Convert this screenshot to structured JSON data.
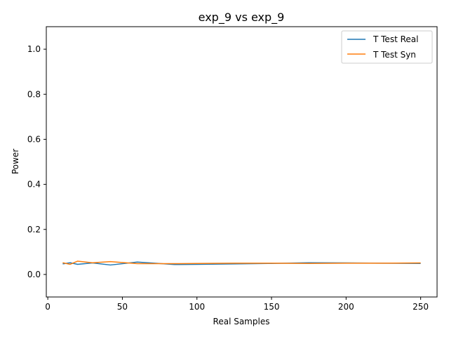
{
  "chart_data": {
    "type": "line",
    "title": "exp_9 vs exp_9",
    "xlabel": "Real Samples",
    "ylabel": "Power",
    "xlim": [
      -1,
      261
    ],
    "ylim": [
      -0.1,
      1.1
    ],
    "xticks": [
      0,
      50,
      100,
      150,
      200,
      250
    ],
    "yticks": [
      0.0,
      0.2,
      0.4,
      0.6,
      0.8,
      1.0
    ],
    "xtick_labels": [
      "0",
      "50",
      "100",
      "150",
      "200",
      "250"
    ],
    "ytick_labels": [
      "0.0",
      "0.2",
      "0.4",
      "0.6",
      "0.8",
      "1.0"
    ],
    "grid": false,
    "legend_position": "top-right",
    "series": [
      {
        "name": "T Test Real",
        "color": "#1f77b4",
        "x": [
          10,
          15,
          20,
          30,
          42,
          60,
          85,
          100,
          125,
          150,
          175,
          200,
          225,
          250
        ],
        "y": [
          0.047,
          0.052,
          0.045,
          0.051,
          0.042,
          0.055,
          0.044,
          0.045,
          0.047,
          0.049,
          0.052,
          0.051,
          0.05,
          0.049
        ]
      },
      {
        "name": "T Test Syn",
        "color": "#ff7f0e",
        "x": [
          10,
          15,
          20,
          30,
          42,
          60,
          85,
          100,
          125,
          150,
          175,
          200,
          225,
          250
        ],
        "y": [
          0.052,
          0.045,
          0.059,
          0.052,
          0.057,
          0.048,
          0.048,
          0.049,
          0.05,
          0.05,
          0.049,
          0.05,
          0.05,
          0.051
        ]
      }
    ]
  }
}
